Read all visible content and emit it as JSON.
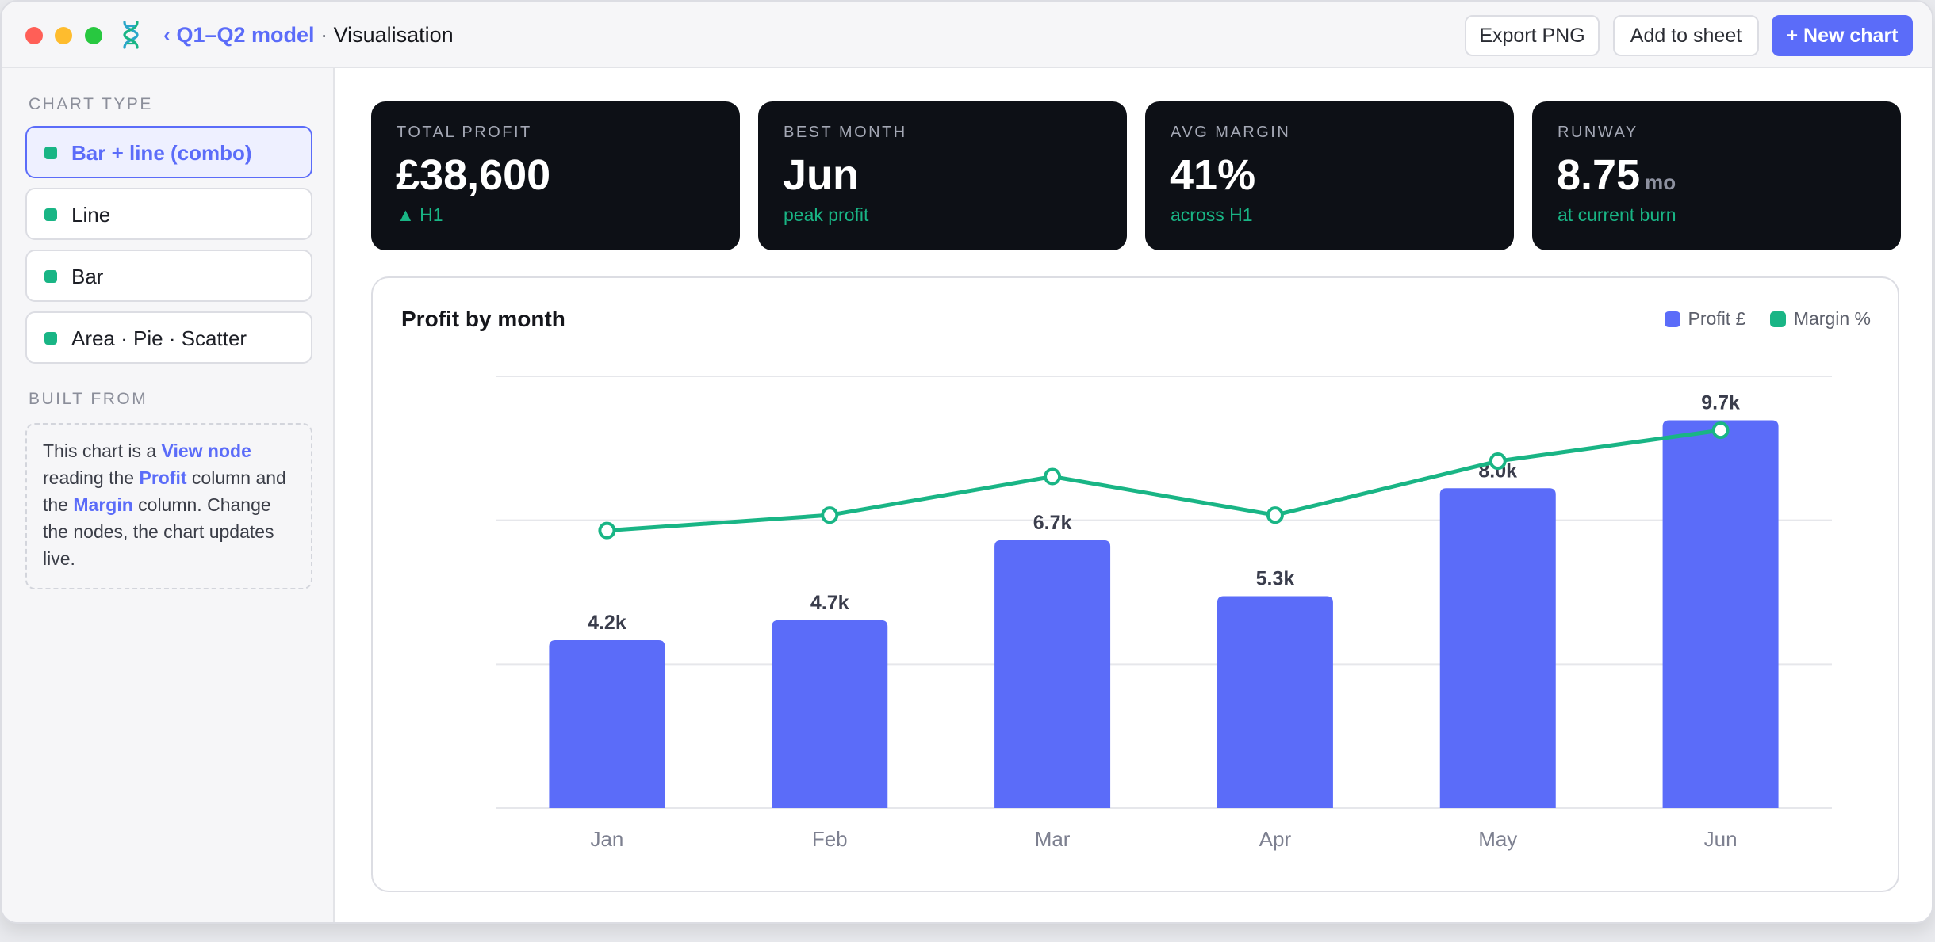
{
  "window": {
    "breadcrumb_back": "‹ Q1–Q2 model",
    "breadcrumb_sep": " · ",
    "breadcrumb_current": "Visualisation"
  },
  "toolbar": {
    "export_label": "Export PNG",
    "add_label": "Add to sheet",
    "new_label": "+ New chart"
  },
  "sidebar": {
    "chart_type_heading": "CHART TYPE",
    "options": [
      {
        "label": "Bar + line (combo)",
        "active": true
      },
      {
        "label": "Line",
        "active": false
      },
      {
        "label": "Bar",
        "active": false
      },
      {
        "label": "Area · Pie · Scatter",
        "active": false
      }
    ],
    "built_from_heading": "BUILT FROM",
    "built_from": {
      "t1": "This chart is a ",
      "l1": "View node",
      "t2": " reading the ",
      "l2": "Profit",
      "t3": " column and the ",
      "l3": "Margin",
      "t4": " column. Change the nodes, the chart updates live."
    }
  },
  "kpis": [
    {
      "label": "TOTAL PROFIT",
      "value": "£38,600",
      "unit": "",
      "sub": "▲ H1"
    },
    {
      "label": "BEST MONTH",
      "value": "Jun",
      "unit": "",
      "sub": "peak profit"
    },
    {
      "label": "AVG MARGIN",
      "value": "41%",
      "unit": "",
      "sub": "across H1"
    },
    {
      "label": "RUNWAY",
      "value": "8.75",
      "unit": "mo",
      "sub": "at current burn"
    }
  ],
  "colors": {
    "accent": "#5b6cf9",
    "bar": "#5b6cf9",
    "line": "#19b585",
    "kpi_bg": "#0d1016"
  },
  "chart_data": {
    "type": "bar+line",
    "title": "Profit by month",
    "categories": [
      "Jan",
      "Feb",
      "Mar",
      "Apr",
      "May",
      "Jun"
    ],
    "series": [
      {
        "name": "Profit £",
        "type": "bar",
        "values": [
          4200,
          4700,
          6700,
          5300,
          8000,
          9700
        ],
        "labels": [
          "4.2k",
          "4.7k",
          "6.7k",
          "5.3k",
          "8.0k",
          "9.7k"
        ]
      },
      {
        "name": "Margin %",
        "type": "line",
        "values": [
          36,
          38,
          43,
          38,
          45,
          49
        ]
      }
    ],
    "bar_axis_range": [
      0,
      10800
    ],
    "line_axis_range": [
      0,
      56
    ],
    "grid": true,
    "legend_position": "top-right"
  }
}
